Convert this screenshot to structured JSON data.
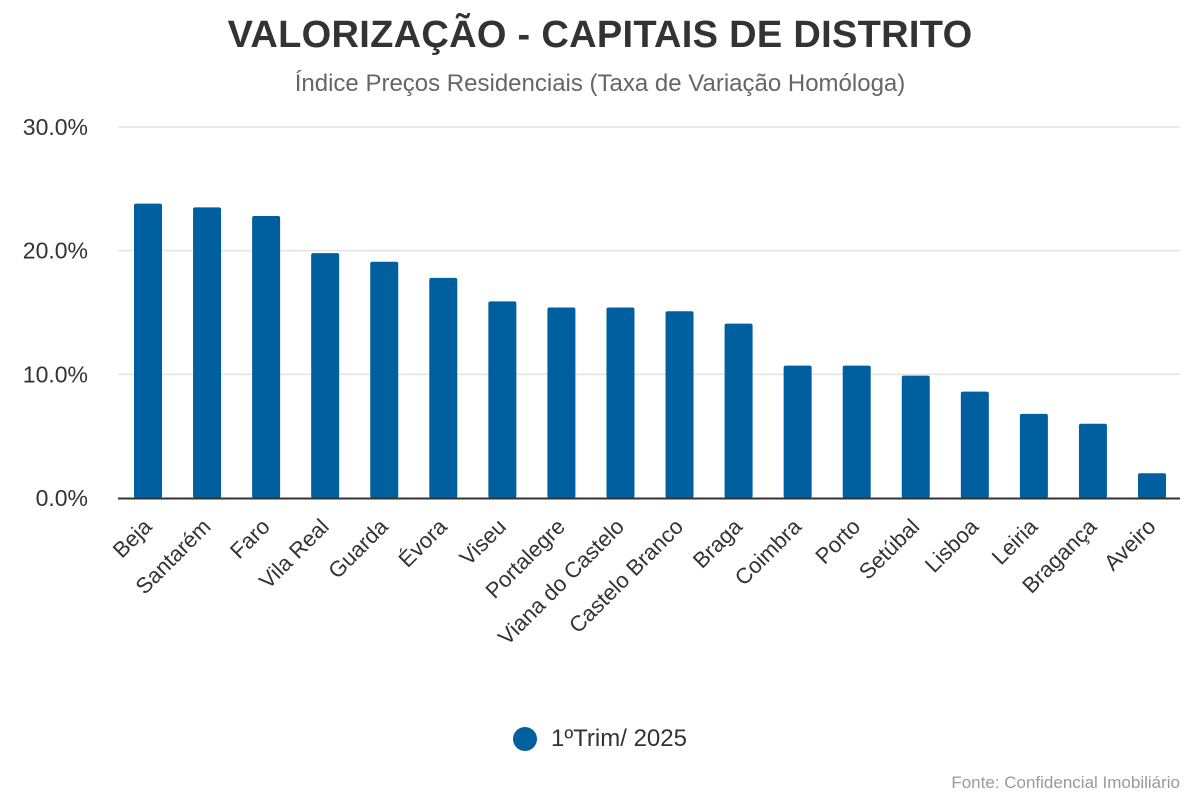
{
  "chart_data": {
    "type": "bar",
    "title": "VALORIZAÇÃO - CAPITAIS DE DISTRITO",
    "subtitle": "Índice Preços Residenciais (Taxa de Variação Homóloga)",
    "categories": [
      "Beja",
      "Santarém",
      "Faro",
      "Vila Real",
      "Guarda",
      "Évora",
      "Viseu",
      "Portalegre",
      "Viana do Castelo",
      "Castelo Branco",
      "Braga",
      "Coimbra",
      "Porto",
      "Setúbal",
      "Lisboa",
      "Leiria",
      "Bragança",
      "Aveiro"
    ],
    "series": [
      {
        "name": "1ºTrim/ 2025",
        "values": [
          23.8,
          23.5,
          22.8,
          19.8,
          19.1,
          17.8,
          15.9,
          15.4,
          15.4,
          15.1,
          14.1,
          10.7,
          10.7,
          9.9,
          8.6,
          6.8,
          6.0,
          2.0
        ]
      }
    ],
    "ylim": [
      0,
      30
    ],
    "yticks": [
      0,
      10,
      20,
      30
    ],
    "ytick_labels": [
      "0.0%",
      "10.0%",
      "20.0%",
      "30.0%"
    ],
    "grid": true,
    "legend_position": "bottom",
    "colors": {
      "bar": "#005f9e",
      "grid": "#e3e3e3",
      "axis": "#333333"
    }
  },
  "legend": {
    "label": "1ºTrim/ 2025"
  },
  "source": "Fonte: Confidencial Imobiliário"
}
